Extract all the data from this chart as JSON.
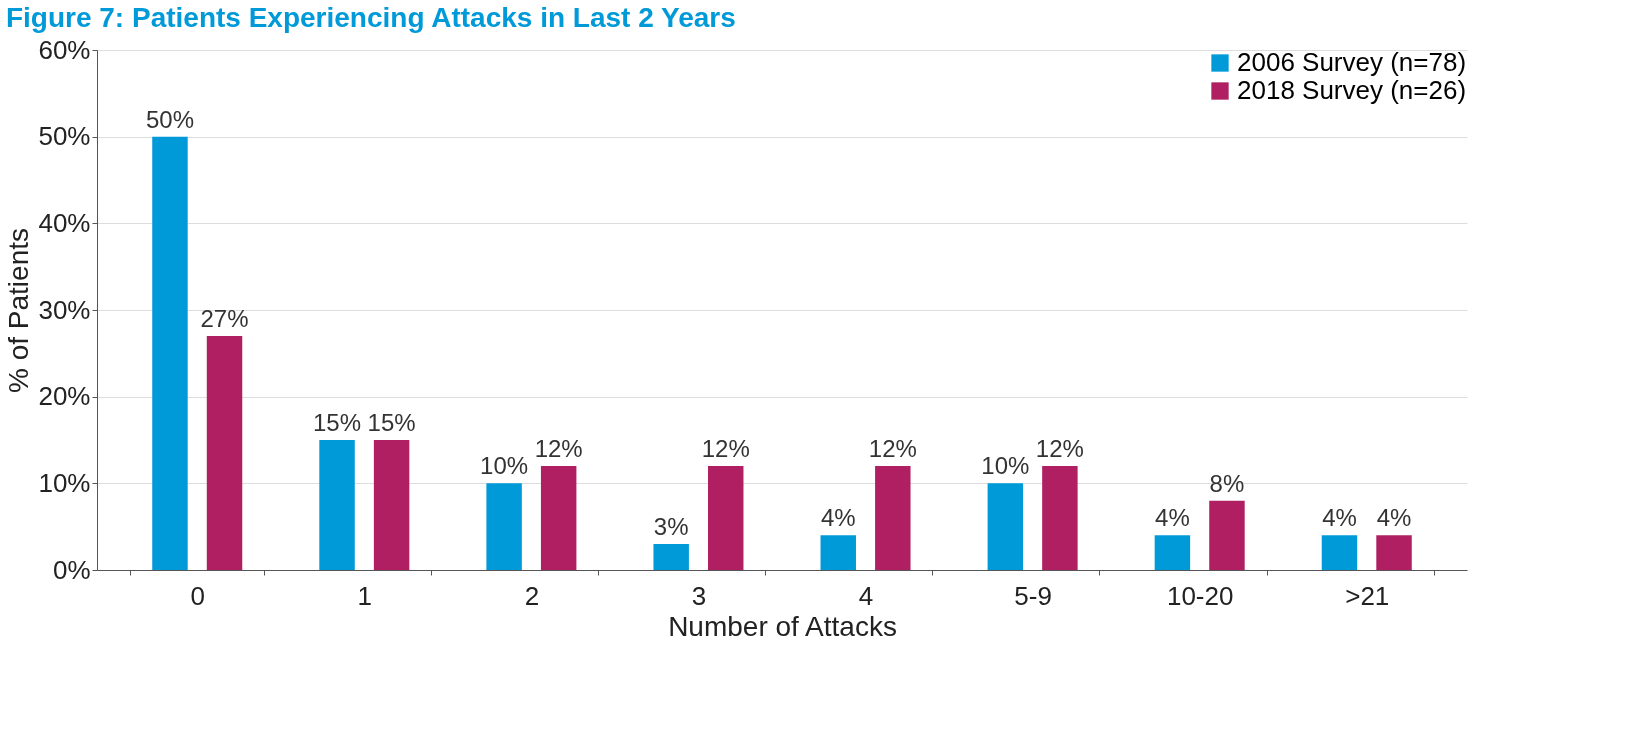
{
  "chart_data": {
    "type": "bar",
    "title": "Figure 7: Patients Experiencing Attacks in Last 2 Years",
    "xlabel": "Number of Attacks",
    "ylabel": "% of Patients",
    "categories": [
      "0",
      "1",
      "2",
      "3",
      "4",
      "5-9",
      "10-20",
      ">21"
    ],
    "series": [
      {
        "name": "2006 Survey (n=78)",
        "color": "#009ad9",
        "values": [
          50,
          15,
          10,
          3,
          4,
          10,
          4,
          4
        ],
        "value_labels": [
          "50%",
          "15%",
          "10%",
          "3%",
          "4%",
          "10%",
          "4%",
          "4%"
        ]
      },
      {
        "name": "2018 Survey (n=26)",
        "color": "#b01f62",
        "values": [
          27,
          15,
          12,
          12,
          12,
          12,
          8,
          4
        ],
        "value_labels": [
          "27%",
          "15%",
          "12%",
          "12%",
          "12%",
          "12%",
          "8%",
          "4%"
        ]
      }
    ],
    "ylim": [
      0,
      60
    ],
    "yticks": [
      {
        "value": 0,
        "label": "0%"
      },
      {
        "value": 10,
        "label": "10%"
      },
      {
        "value": 20,
        "label": "20%"
      },
      {
        "value": 30,
        "label": "30%"
      },
      {
        "value": 40,
        "label": "40%"
      },
      {
        "value": 50,
        "label": "50%"
      },
      {
        "value": 60,
        "label": "60%"
      }
    ],
    "grid": "y",
    "legend": "top right"
  }
}
